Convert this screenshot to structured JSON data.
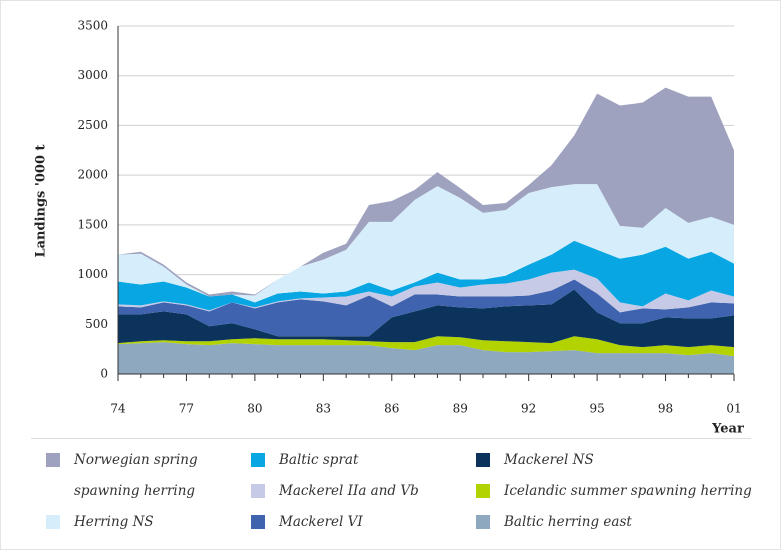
{
  "chart_data": {
    "type": "stacked_area",
    "y_label": "Landings '000 t",
    "x_label": "Year",
    "categories": [
      "74",
      null,
      null,
      "77",
      null,
      null,
      "80",
      null,
      null,
      "83",
      null,
      null,
      "86",
      null,
      null,
      "89",
      null,
      null,
      "92",
      null,
      null,
      "95",
      null,
      null,
      "98",
      null,
      null,
      "01"
    ],
    "ylim": [
      0,
      3500
    ],
    "yticks": [
      0,
      500,
      1000,
      1500,
      2000,
      2500,
      3000,
      3500
    ],
    "grid": true,
    "series": [
      {
        "name": "Baltic herring east",
        "color": "#8ea9bf",
        "values": [
          300,
          310,
          320,
          300,
          290,
          310,
          300,
          290,
          290,
          290,
          290,
          290,
          260,
          240,
          290,
          290,
          240,
          220,
          220,
          230,
          240,
          210,
          210,
          210,
          210,
          190,
          210,
          180
        ]
      },
      {
        "name": "Icelandic summer spawning herring",
        "color": "#b3d300",
        "values": [
          10,
          20,
          20,
          30,
          40,
          40,
          60,
          60,
          60,
          60,
          50,
          40,
          60,
          80,
          90,
          80,
          100,
          110,
          100,
          80,
          140,
          140,
          80,
          60,
          80,
          80,
          80,
          90
        ]
      },
      {
        "name": "Mackerel NS",
        "color": "#0b335c",
        "values": [
          290,
          270,
          290,
          270,
          150,
          160,
          90,
          30,
          30,
          30,
          40,
          50,
          250,
          310,
          310,
          300,
          320,
          350,
          370,
          390,
          470,
          270,
          220,
          240,
          280,
          290,
          270,
          320
        ]
      },
      {
        "name": "Mackerel VI",
        "color": "#3f63ae",
        "values": [
          80,
          70,
          90,
          90,
          150,
          210,
          210,
          340,
          370,
          350,
          310,
          410,
          110,
          170,
          110,
          110,
          120,
          100,
          100,
          140,
          100,
          190,
          110,
          150,
          80,
          110,
          160,
          120
        ]
      },
      {
        "name": "Mackerel IIa and Vb",
        "color": "#c6cae6",
        "values": [
          20,
          20,
          10,
          10,
          10,
          0,
          10,
          10,
          10,
          40,
          90,
          40,
          100,
          80,
          120,
          90,
          120,
          130,
          160,
          180,
          100,
          150,
          100,
          20,
          160,
          70,
          120,
          70
        ]
      },
      {
        "name": "Baltic sprat",
        "color": "#08a6e2",
        "values": [
          230,
          210,
          200,
          170,
          140,
          80,
          50,
          80,
          70,
          40,
          50,
          90,
          60,
          40,
          100,
          80,
          50,
          80,
          150,
          180,
          290,
          290,
          440,
          520,
          470,
          420,
          390,
          330
        ]
      },
      {
        "name": "Herring NS",
        "color": "#d6eefb",
        "values": [
          270,
          310,
          150,
          30,
          0,
          0,
          70,
          140,
          250,
          340,
          420,
          610,
          690,
          830,
          870,
          820,
          670,
          660,
          720,
          680,
          570,
          660,
          330,
          270,
          390,
          360,
          350,
          390
        ]
      },
      {
        "name": "Norwegian spring spawning herring",
        "color": "#9ea2bf",
        "values": [
          0,
          20,
          20,
          20,
          20,
          30,
          10,
          0,
          0,
          70,
          60,
          170,
          210,
          100,
          140,
          100,
          80,
          70,
          80,
          220,
          490,
          910,
          1210,
          1260,
          1210,
          1270,
          1210,
          750
        ]
      }
    ]
  }
}
